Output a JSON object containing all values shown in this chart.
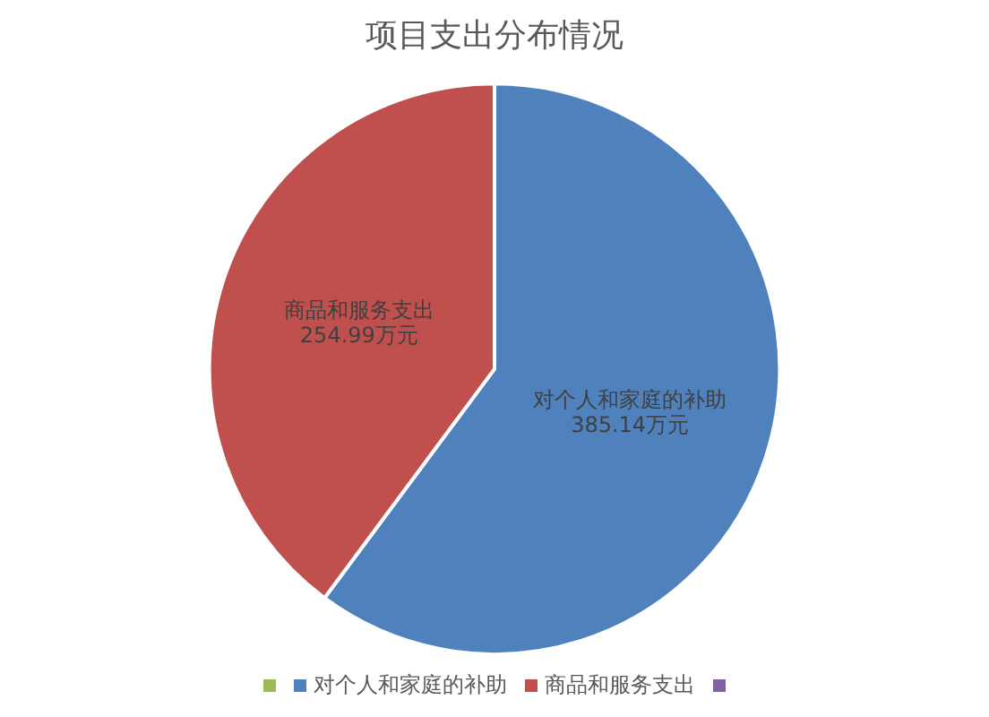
{
  "chart_data": {
    "type": "pie",
    "title": "项目支出分布情况",
    "categories": [
      null,
      "对个人和家庭的补助",
      "商品和服务支出",
      null
    ],
    "values": [
      0,
      385.14,
      254.99,
      0
    ],
    "colors": [
      "#9bbb59",
      "#4f81bd",
      "#c0504d",
      "#8064a2"
    ],
    "value_labels": [
      null,
      "385.14万元",
      "254.99万元",
      null
    ],
    "legend": "bottom"
  }
}
